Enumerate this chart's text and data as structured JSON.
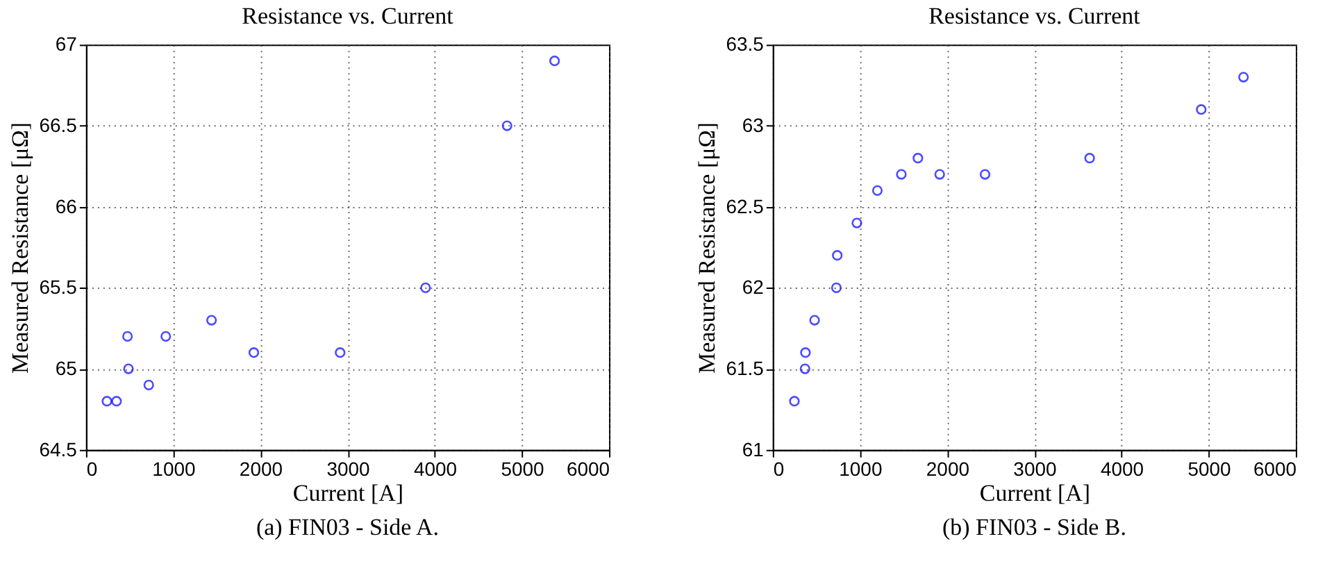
{
  "chart_data": [
    {
      "type": "scatter",
      "title": "Resistance vs. Current",
      "xlabel": "Current [A]",
      "ylabel": "Measured Resistance [μΩ]",
      "annotations": [
        "(a) FIN03 - Side A."
      ],
      "series": [
        {
          "color": "#0000ff",
          "x": [
            240,
            350,
            476,
            487,
            720,
            915,
            1440,
            1925,
            2915,
            3895,
            4830,
            5375
          ],
          "values": [
            64.8,
            64.8,
            65.2,
            65.0,
            64.9,
            65.2,
            65.3,
            65.1,
            65.1,
            65.5,
            66.5,
            66.9
          ]
        }
      ],
      "xlim": [
        0,
        6000
      ],
      "xticks": [
        0,
        1000,
        2000,
        3000,
        4000,
        5000,
        6000
      ],
      "ylim": [
        64.5,
        67
      ],
      "yticks": [
        64.5,
        65,
        65.5,
        66,
        66.5,
        67
      ],
      "grid": true,
      "marker": "circle",
      "legend": false
    },
    {
      "type": "scatter",
      "title": "Resistance vs. Current",
      "xlabel": "Current [A]",
      "ylabel": "Measured Resistance [μΩ]",
      "annotations": [
        "(b) FIN03 - Side B."
      ],
      "series": [
        {
          "color": "#0000ff",
          "x": [
            248,
            370,
            375,
            480,
            730,
            740,
            965,
            1200,
            1475,
            1665,
            1915,
            2435,
            3635,
            4915,
            5400
          ],
          "values": [
            61.3,
            61.5,
            61.6,
            61.8,
            62.0,
            62.2,
            62.4,
            62.6,
            62.7,
            62.8,
            62.7,
            62.7,
            62.8,
            63.1,
            63.3
          ]
        }
      ],
      "xlim": [
        0,
        6000
      ],
      "xticks": [
        0,
        1000,
        2000,
        3000,
        4000,
        5000,
        6000
      ],
      "ylim": [
        61,
        63.5
      ],
      "yticks": [
        61,
        61.5,
        62,
        62.5,
        63,
        63.5
      ],
      "grid": true,
      "marker": "circle",
      "legend": false
    }
  ]
}
